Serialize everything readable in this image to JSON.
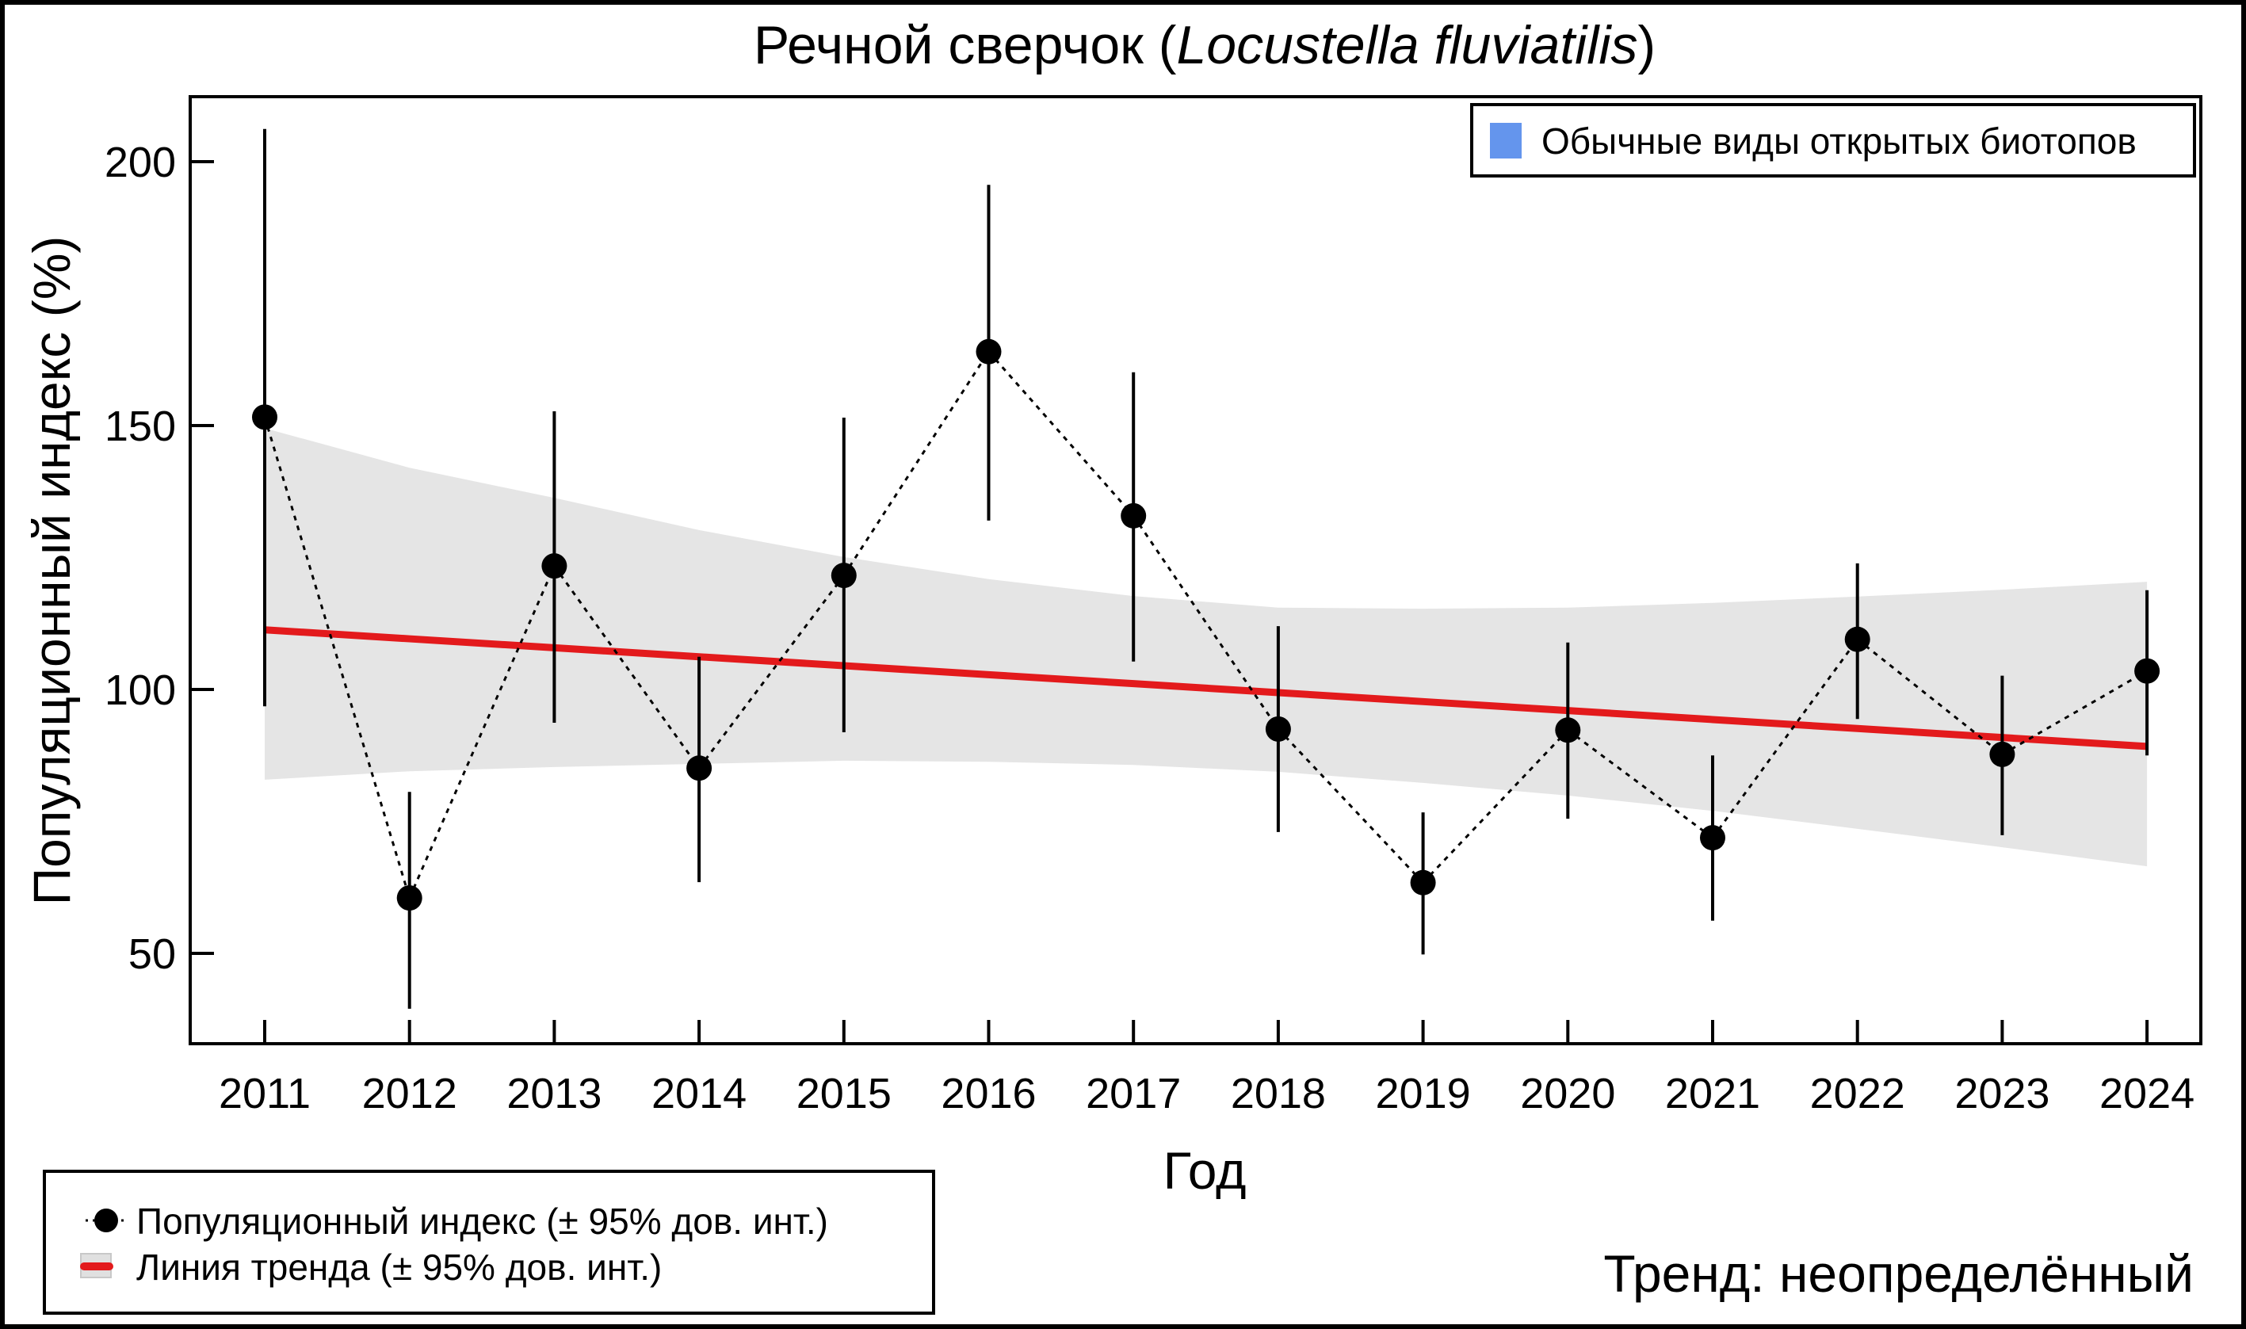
{
  "chart_data": {
    "type": "line",
    "title": {
      "main": "Речной сверчок (",
      "species": "Locustella fluviatilis",
      "close": ")"
    },
    "xlabel": "Год",
    "ylabel": "Популяционный индекс (%)",
    "ylim": [
      33,
      213
    ],
    "yticks": [
      50,
      100,
      150,
      200
    ],
    "ytick_labels": [
      "50",
      "100",
      "150",
      "200"
    ],
    "categories": [
      "2011",
      "2012",
      "2013",
      "2014",
      "2015",
      "2016",
      "2017",
      "2018",
      "2019",
      "2020",
      "2021",
      "2022",
      "2023",
      "2024"
    ],
    "series": [
      {
        "name": "Популяционный индекс (± 95% дов. инт.)",
        "values": [
          151.6,
          60.5,
          123.4,
          85.1,
          121.6,
          164.0,
          132.9,
          92.5,
          63.4,
          92.3,
          71.9,
          109.5,
          87.7,
          103.5
        ],
        "ci_lower": [
          96.8,
          39.5,
          93.7,
          63.5,
          91.9,
          132.0,
          105.3,
          73.0,
          49.8,
          75.5,
          56.2,
          94.4,
          72.4,
          87.5
        ],
        "ci_upper": [
          206.2,
          80.6,
          152.7,
          106.2,
          151.5,
          195.6,
          160.1,
          112.0,
          76.7,
          108.9,
          87.5,
          123.9,
          102.6,
          118.8
        ],
        "color": "#000000"
      },
      {
        "name": "Линия тренда (± 95% дов. инт.)",
        "values": [
          111.3,
          109.6,
          107.9,
          106.2,
          104.5,
          102.8,
          101.1,
          99.4,
          97.7,
          96.0,
          94.3,
          92.6,
          90.9,
          89.2
        ],
        "ci_lower": [
          82.9,
          84.5,
          85.3,
          85.9,
          86.5,
          86.3,
          85.7,
          84.4,
          82.3,
          79.9,
          77.0,
          73.6,
          70.1,
          66.5
        ],
        "ci_upper": [
          149.5,
          142.0,
          136.3,
          130.2,
          125.1,
          120.9,
          117.7,
          115.5,
          115.3,
          115.5,
          116.4,
          117.6,
          118.9,
          120.4
        ],
        "color": "#E31A1C",
        "band_color": "#E5E5E5"
      }
    ],
    "group_legend": {
      "label": "Обычные виды открытых биотопов",
      "color": "#6495ED",
      "position": "top-right"
    },
    "legend_position": "bottom-left",
    "annotation": "Тренд: неопределённый",
    "grid": false
  }
}
